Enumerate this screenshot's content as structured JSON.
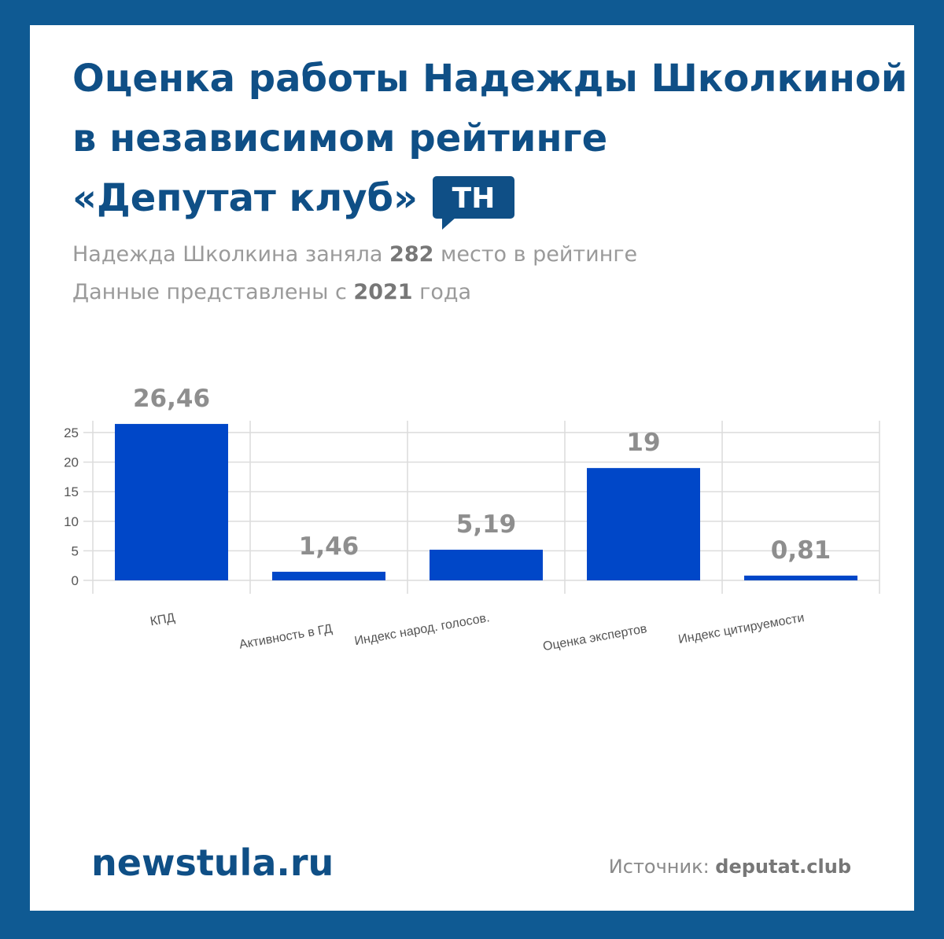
{
  "header": {
    "title": [
      "Оценка работы Надежды Школкиной",
      "в независимом рейтинге",
      "«Депутат клуб»"
    ],
    "badge": "ТН",
    "subtitle": [
      [
        "Надежда Школкина заняла ",
        "282",
        " место в рейтинге"
      ],
      [
        "Данные представлены с ",
        "2021",
        " года"
      ]
    ]
  },
  "chart_data": {
    "type": "bar",
    "categories": [
      "КПД",
      "Активность в ГД",
      "Индекс народ. голосов.",
      "Оценка экспертов",
      "Индекс цитируемости"
    ],
    "values": [
      26.46,
      1.46,
      5.19,
      19,
      0.81
    ],
    "value_labels": [
      "26,46",
      "1,46",
      "5,19",
      "19",
      "0,81"
    ],
    "color": "#0047c8",
    "ylim": [
      0,
      27
    ],
    "yticks": [
      0,
      5,
      10,
      15,
      20,
      25
    ],
    "grid": true
  },
  "footer": {
    "site": "newstula.ru",
    "source": [
      "Источник: ",
      "deputat.club"
    ]
  }
}
